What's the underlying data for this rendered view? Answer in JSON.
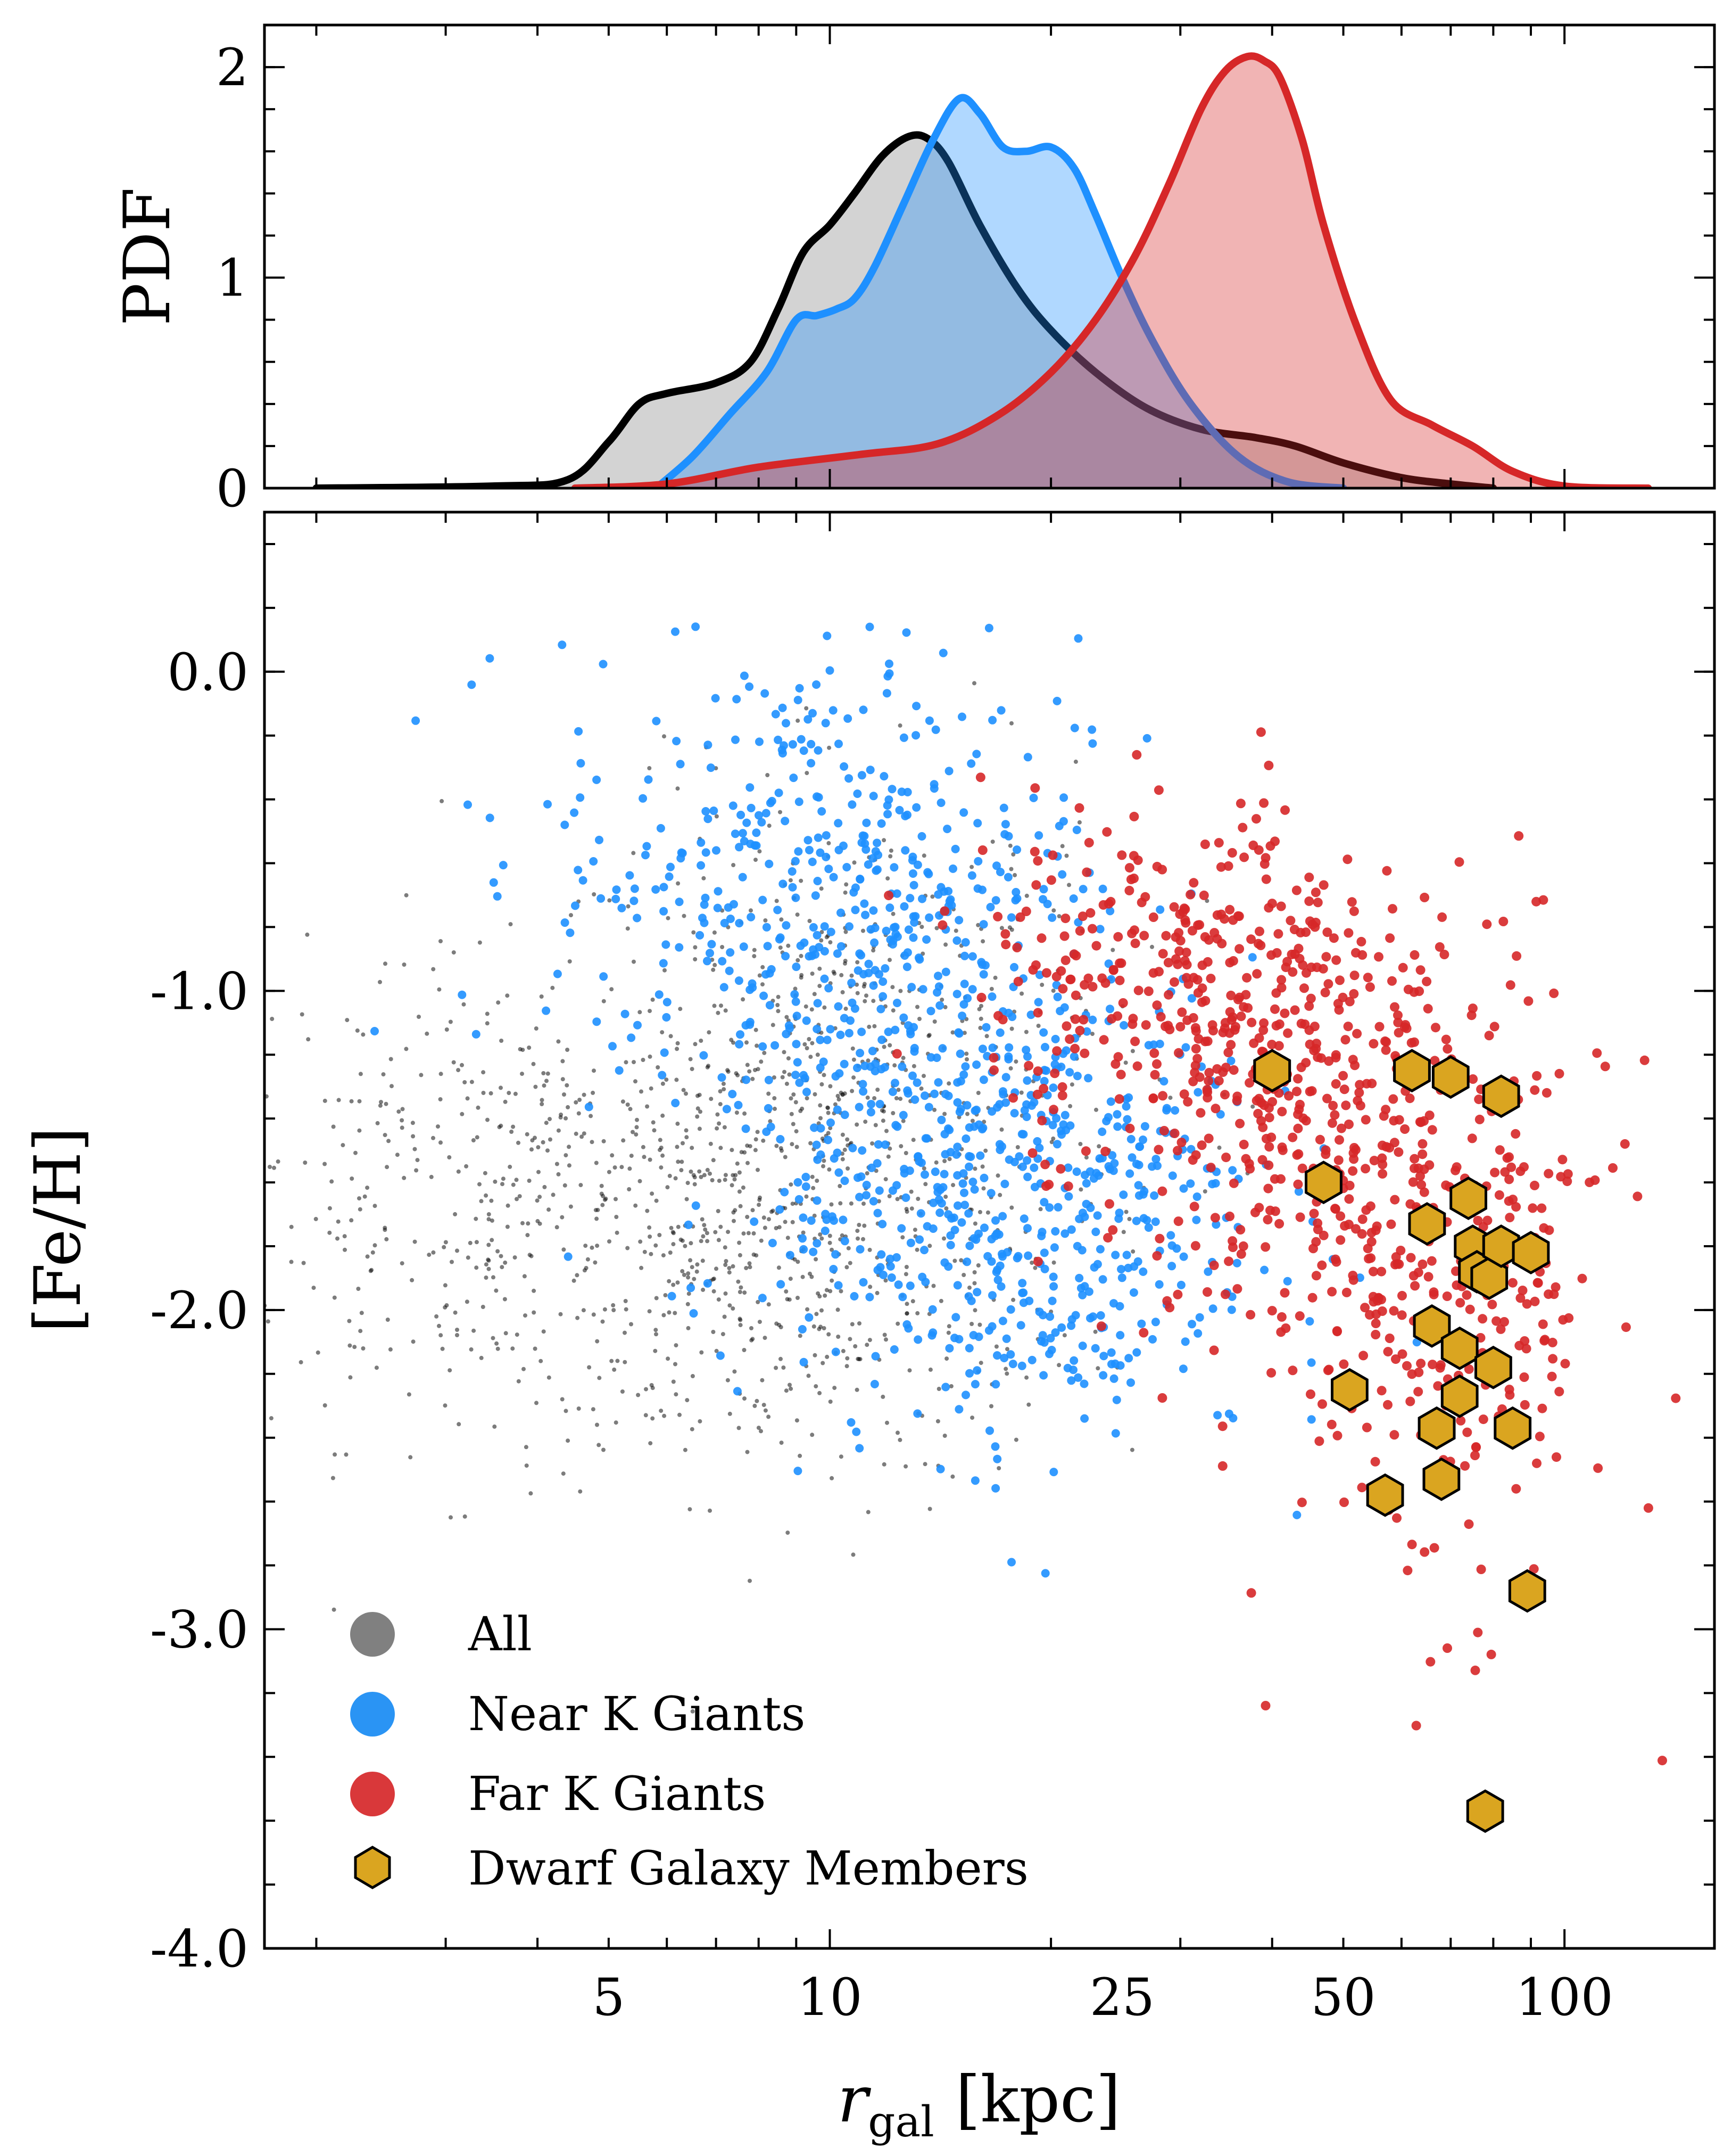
{
  "chart_data": [
    {
      "type": "area",
      "panel": "top",
      "ylabel": "PDF",
      "xscale": "log",
      "xlim": [
        1.7,
        160
      ],
      "ylim": [
        0,
        2.2
      ],
      "yticks": [
        0,
        1,
        2
      ],
      "ytick_labels": [
        "0",
        "1",
        "2"
      ],
      "series": [
        {
          "color": "#000000",
          "fill": "#808080",
          "x": [
            2.0,
            3.5,
            4.4,
            5.0,
            5.5,
            6.0,
            7.0,
            7.8,
            8.5,
            9.2,
            10.0,
            10.8,
            11.8,
            12.8,
            13.6,
            14.5,
            16.0,
            18.0,
            20.0,
            23.0,
            27.0,
            32.0,
            38.0,
            43.0,
            50.0,
            60.0,
            70.0,
            80.0
          ],
          "y": [
            0.0,
            0.01,
            0.04,
            0.22,
            0.4,
            0.45,
            0.5,
            0.6,
            0.85,
            1.12,
            1.25,
            1.4,
            1.58,
            1.67,
            1.66,
            1.55,
            1.25,
            0.95,
            0.75,
            0.55,
            0.38,
            0.28,
            0.24,
            0.2,
            0.12,
            0.05,
            0.02,
            0.0
          ]
        },
        {
          "color": "#1e90ff",
          "fill": "#1e90ff",
          "x": [
            5.8,
            6.5,
            7.3,
            8.2,
            9.0,
            9.6,
            10.2,
            10.8,
            11.5,
            12.6,
            13.8,
            15.0,
            16.0,
            17.2,
            18.5,
            20.0,
            21.5,
            23.0,
            25.0,
            27.5,
            31.0,
            36.0,
            42.0,
            50.0
          ],
          "y": [
            0.0,
            0.15,
            0.35,
            0.55,
            0.8,
            0.82,
            0.85,
            0.9,
            1.05,
            1.35,
            1.65,
            1.85,
            1.78,
            1.62,
            1.6,
            1.62,
            1.52,
            1.3,
            1.0,
            0.7,
            0.4,
            0.15,
            0.03,
            0.0
          ]
        },
        {
          "color": "#d62728",
          "fill": "#d62728",
          "x": [
            4.5,
            6.0,
            8.0,
            11.0,
            14.0,
            17.0,
            20.0,
            23.0,
            26.0,
            29.0,
            32.0,
            34.5,
            37.0,
            39.0,
            41.0,
            44.0,
            47.0,
            52.0,
            58.0,
            66.0,
            75.0,
            85.0,
            100.0,
            130.0
          ],
          "y": [
            0.0,
            0.02,
            0.1,
            0.16,
            0.21,
            0.35,
            0.55,
            0.8,
            1.1,
            1.45,
            1.8,
            1.98,
            2.05,
            2.03,
            1.95,
            1.65,
            1.25,
            0.78,
            0.42,
            0.3,
            0.2,
            0.08,
            0.01,
            0.0
          ]
        }
      ]
    },
    {
      "type": "scatter",
      "panel": "bottom",
      "xlabel_main": "r",
      "xlabel_sub": "gal",
      "xlabel_unit": "[kpc]",
      "ylabel": "[Fe/H]",
      "xscale": "log",
      "xlim": [
        1.7,
        160
      ],
      "ylim": [
        -4.0,
        0.5
      ],
      "xticks": [
        5,
        10,
        25,
        50,
        100
      ],
      "xtick_labels": [
        "5",
        "10",
        "25",
        "50",
        "100"
      ],
      "yticks": [
        0.0,
        -1.0,
        -2.0,
        -3.0,
        -4.0
      ],
      "ytick_labels": [
        "0.0",
        "-1.0",
        "-2.0",
        "-3.0",
        "-4.0"
      ],
      "legend_position": "lower-left",
      "series": [
        {
          "name": "All",
          "color": "#808080",
          "marker": "dot",
          "clusters": [
            {
              "x": 3.8,
              "y": -1.65,
              "sx": 0.55,
              "sy": 0.38
            },
            {
              "x": 8.5,
              "y": -1.85,
              "sx": 0.45,
              "sy": 0.35
            },
            {
              "x": 11.0,
              "y": -1.2,
              "sx": 0.4,
              "sy": 0.4
            }
          ]
        },
        {
          "name": "Near K Giants",
          "color": "#1e90ff",
          "marker": "dot",
          "clusters": [
            {
              "x": 9.5,
              "y": -0.6,
              "sx": 0.4,
              "sy": 0.35
            },
            {
              "x": 14.0,
              "y": -1.3,
              "sx": 0.4,
              "sy": 0.4
            },
            {
              "x": 19.0,
              "y": -1.75,
              "sx": 0.35,
              "sy": 0.35
            }
          ]
        },
        {
          "name": "Far K Giants",
          "color": "#d62728",
          "marker": "dot",
          "clusters": [
            {
              "x": 30.0,
              "y": -0.95,
              "sx": 0.3,
              "sy": 0.28
            },
            {
              "x": 45.0,
              "y": -1.45,
              "sx": 0.3,
              "sy": 0.35
            },
            {
              "x": 70.0,
              "y": -1.9,
              "sx": 0.25,
              "sy": 0.5
            }
          ]
        },
        {
          "name": "Dwarf Galaxy Members",
          "color": "#daa520",
          "marker": "hexagon",
          "x": [
            40.0,
            47.0,
            51.0,
            57.0,
            62.0,
            65.0,
            67.0,
            68.0,
            66.0,
            70.0,
            72.0,
            72.0,
            74.0,
            75.0,
            76.0,
            78.0,
            79.0,
            80.0,
            82.0,
            82.0,
            85.0,
            89.0,
            90.0
          ],
          "y": [
            -1.25,
            -1.6,
            -2.25,
            -2.58,
            -1.25,
            -1.73,
            -2.37,
            -2.53,
            -2.05,
            -1.27,
            -2.12,
            -2.27,
            -1.65,
            -1.8,
            -1.88,
            -3.57,
            -1.9,
            -2.18,
            -1.33,
            -1.8,
            -2.37,
            -2.88,
            -1.82
          ]
        }
      ]
    }
  ]
}
